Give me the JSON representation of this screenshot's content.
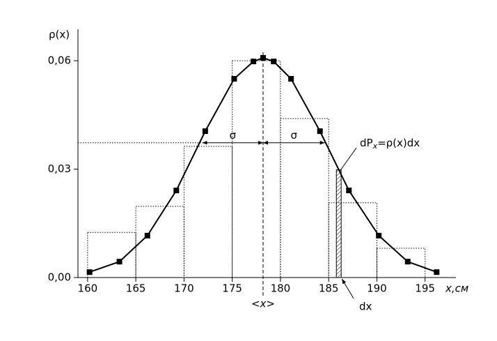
{
  "chart_data": {
    "type": "line",
    "y_label": "ρ(x)",
    "x_label": "x,см",
    "x": [
      160.2,
      163.3,
      166.2,
      169.2,
      172.2,
      175.2,
      177.2,
      178.2,
      179.3,
      181.1,
      184.1,
      187.1,
      190.2,
      193.2,
      196.2
    ],
    "values": [
      0.0015,
      0.0044,
      0.0116,
      0.0241,
      0.0405,
      0.055,
      0.0598,
      0.0608,
      0.0598,
      0.055,
      0.0405,
      0.0241,
      0.0116,
      0.0044,
      0.0015
    ],
    "color": "#000000",
    "histogram": {
      "bins": [
        160,
        165,
        170,
        175,
        180,
        185,
        190,
        195
      ],
      "values": [
        0.0125,
        0.0197,
        0.0363,
        0.06,
        0.044,
        0.0207,
        0.0081
      ]
    },
    "mean": {
      "value": 178.2,
      "label": "<x>"
    },
    "sigma": {
      "y": 0.0373,
      "x": [
        171.9,
        178.2,
        184.6
      ],
      "labels": [
        "σ",
        "σ"
      ]
    },
    "dx": {
      "x": [
        185.8,
        186.3
      ],
      "label": "dx"
    },
    "density_label": {
      "main": "dP",
      "sub": "x",
      "rest": "=ρ(x)dx"
    },
    "xlim": [
      159,
      198.2
    ],
    "ylim": [
      0,
      0.0687
    ],
    "xticks": [
      160,
      165,
      170,
      175,
      180,
      185,
      190,
      195
    ],
    "yticks": [
      {
        "value": 0,
        "label": "0,00"
      },
      {
        "value": 0.03,
        "label": "0,03"
      },
      {
        "value": 0.06,
        "label": "0,06"
      }
    ]
  }
}
